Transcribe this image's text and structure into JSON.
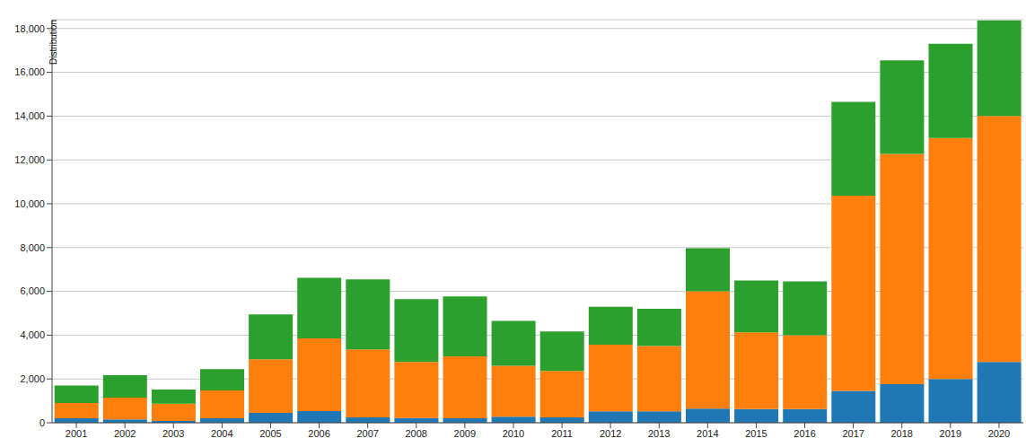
{
  "chart_data": {
    "type": "bar",
    "y_label": "Distribution",
    "stacked": true,
    "grid": true,
    "categories": [
      "2001",
      "2002",
      "2003",
      "2004",
      "2005",
      "2006",
      "2007",
      "2008",
      "2009",
      "2010",
      "2011",
      "2012",
      "2013",
      "2014",
      "2015",
      "2016",
      "2017",
      "2018",
      "2019",
      "2020"
    ],
    "series": [
      {
        "color": "#1f77b4",
        "values": [
          200,
          150,
          80,
          200,
          450,
          530,
          250,
          220,
          200,
          280,
          250,
          520,
          520,
          650,
          620,
          620,
          1450,
          1760,
          2000,
          2780
        ]
      },
      {
        "color": "#ff7f0e",
        "values": [
          700,
          1000,
          790,
          1280,
          2450,
          3320,
          3100,
          2560,
          2830,
          2320,
          2120,
          3050,
          2980,
          5350,
          3510,
          3380,
          8920,
          10510,
          11000,
          11220
        ]
      },
      {
        "color": "#2ca02c",
        "values": [
          800,
          1020,
          650,
          970,
          2050,
          2770,
          3200,
          2870,
          2740,
          2050,
          1800,
          1730,
          1700,
          1970,
          2370,
          2450,
          4280,
          4280,
          4300,
          4370
        ]
      }
    ],
    "ylim": [
      0,
      18400
    ],
    "yticks": [
      0,
      {
        "value": 2000,
        "label": "2,000"
      },
      {
        "value": 4000,
        "label": "4,000"
      },
      {
        "value": 6000,
        "label": "6,000"
      },
      {
        "value": 8000,
        "label": "8,000"
      },
      {
        "value": 10000,
        "label": "10,000"
      },
      {
        "value": 12000,
        "label": "12,000"
      },
      {
        "value": 14000,
        "label": "14,000"
      },
      {
        "value": 16000,
        "label": "16,000"
      },
      {
        "value": 18000,
        "label": "18,000"
      }
    ]
  }
}
